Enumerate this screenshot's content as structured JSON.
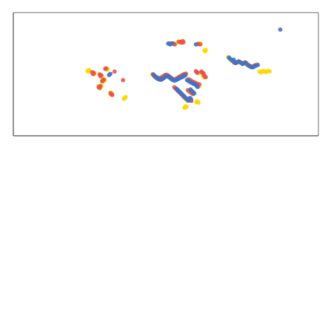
{
  "chart_data": {
    "type": "scatter",
    "xlim": [
      -180,
      180
    ],
    "ylim": [
      -60,
      85
    ],
    "grid": false,
    "tick_labels": false,
    "series": [
      {
        "color": "#FFD700",
        "values": [
          [
            -16.0,
            12.5
          ],
          [
            -14.8,
            11.2
          ],
          [
            -13.5,
            9.8
          ],
          [
            -12.2,
            8.8
          ],
          [
            -10.8,
            7.8
          ],
          [
            -9.2,
            6.5
          ],
          [
            -7.8,
            7.0
          ],
          [
            -6.2,
            7.5
          ],
          [
            -4.8,
            8.2
          ],
          [
            -3.5,
            9.0
          ],
          [
            -2.2,
            10.0
          ],
          [
            -0.5,
            11.0
          ],
          [
            0.8,
            11.5
          ],
          [
            2.2,
            11.0
          ],
          [
            3.5,
            10.2
          ],
          [
            4.8,
            9.0
          ],
          [
            6.2,
            8.2
          ],
          [
            7.5,
            7.2
          ],
          [
            8.8,
            6.2
          ],
          [
            10.2,
            5.5
          ],
          [
            11.5,
            6.2
          ],
          [
            12.8,
            7.0
          ],
          [
            14.0,
            7.8
          ],
          [
            15.2,
            8.5
          ],
          [
            16.5,
            9.0
          ],
          [
            18.0,
            9.8
          ],
          [
            19.5,
            10.8
          ],
          [
            21.0,
            11.5
          ],
          [
            22.5,
            12.0
          ],
          [
            24.0,
            12.8
          ],
          [
            26.0,
            6.0
          ],
          [
            28.0,
            4.8
          ],
          [
            30.0,
            3.5
          ],
          [
            32.0,
            2.5
          ],
          [
            34.0,
            1.5
          ],
          [
            36.0,
            0.5
          ],
          [
            38.0,
            -0.5
          ],
          [
            39.5,
            -1.8
          ],
          [
            11.0,
            -3.5
          ],
          [
            13.0,
            -5.5
          ],
          [
            14.8,
            -7.2
          ],
          [
            16.5,
            -8.8
          ],
          [
            18.0,
            -10.2
          ],
          [
            19.5,
            -11.8
          ],
          [
            21.0,
            -13.2
          ],
          [
            22.5,
            -14.8
          ],
          [
            24.0,
            -16.2
          ],
          [
            26.0,
            -17.8
          ],
          [
            28.0,
            -6.0
          ],
          [
            29.5,
            -7.8
          ],
          [
            31.0,
            -9.2
          ],
          [
            32.5,
            -10.8
          ],
          [
            27.5,
            -16.0
          ],
          [
            29.0,
            -17.8
          ],
          [
            25.5,
            -19.0
          ],
          [
            37.0,
            -19.5
          ],
          [
            36.0,
            -20.5
          ],
          [
            38.5,
            -21.0
          ],
          [
            23.0,
            -25.5
          ],
          [
            24.5,
            -26.0
          ],
          [
            22.0,
            -27.0
          ],
          [
            79.0,
            27.5
          ],
          [
            81.0,
            26.8
          ],
          [
            83.0,
            25.8
          ],
          [
            85.5,
            27.2
          ],
          [
            87.5,
            26.2
          ],
          [
            89.5,
            24.8
          ],
          [
            91.5,
            25.5
          ],
          [
            93.0,
            26.5
          ],
          [
            95.5,
            24.0
          ],
          [
            97.5,
            22.8
          ],
          [
            99.5,
            21.5
          ],
          [
            101.5,
            20.8
          ],
          [
            103.5,
            21.8
          ],
          [
            105.5,
            22.8
          ],
          [
            107.5,
            24.0
          ],
          [
            77.0,
            29.0
          ],
          [
            75.0,
            30.8
          ],
          [
            73.5,
            32.5
          ],
          [
            6.0,
            49.0
          ],
          [
            9.0,
            48.2
          ],
          [
            11.5,
            48.5
          ],
          [
            14.0,
            50.5
          ],
          [
            16.5,
            50.0
          ],
          [
            19.0,
            51.0
          ],
          [
            21.0,
            50.5
          ],
          [
            37.5,
            48.5
          ],
          [
            39.0,
            47.8
          ],
          [
            41.0,
            48.5
          ],
          [
            45.5,
            40.5
          ],
          [
            47.0,
            41.0
          ],
          [
            46.5,
            39.5
          ],
          [
            -73.0,
            4.5
          ],
          [
            -74.5,
            3.5
          ],
          [
            -72.0,
            5.5
          ],
          [
            -78.5,
            -2.2
          ],
          [
            -77.2,
            -3.5
          ],
          [
            -76.0,
            -1.8
          ],
          [
            -79.5,
            -1.2
          ],
          [
            -63.5,
            -10.5
          ],
          [
            -64.8,
            -11.5
          ],
          [
            -65.5,
            -9.2
          ],
          [
            -48.5,
            -15.5
          ],
          [
            -49.5,
            -16.5
          ],
          [
            -47.5,
            -14.5
          ],
          [
            -68.5,
            18.5
          ],
          [
            -69.5,
            17.8
          ],
          [
            -75.5,
            10.5
          ],
          [
            -76.5,
            9.5
          ],
          [
            -77.5,
            11.5
          ],
          [
            -84.0,
            13.5
          ],
          [
            -85.0,
            12.5
          ],
          [
            -86.0,
            14.5
          ],
          [
            -92.5,
            16.5
          ],
          [
            -91.5,
            15.5
          ],
          [
            -90.5,
            17.5
          ],
          [
            42.5,
            13.5
          ],
          [
            43.5,
            12.5
          ],
          [
            41.5,
            14.5
          ],
          [
            45.0,
            9.5
          ],
          [
            46.0,
            8.5
          ],
          [
            44.0,
            10.5
          ],
          [
            110.5,
            15.5
          ],
          [
            112.5,
            14.5
          ],
          [
            114.5,
            16.5
          ],
          [
            116.5,
            15.8
          ],
          [
            118.5,
            15.0
          ],
          [
            120.5,
            16.5
          ],
          [
            122.5,
            15.8
          ]
        ]
      },
      {
        "color": "#E8534A",
        "values": [
          [
            -15.2,
            12.2
          ],
          [
            -13.8,
            10.8
          ],
          [
            -12.5,
            9.5
          ],
          [
            -11.2,
            8.2
          ],
          [
            -9.8,
            7.5
          ],
          [
            -8.5,
            7.2
          ],
          [
            -7.2,
            7.8
          ],
          [
            -5.5,
            8.5
          ],
          [
            -4.0,
            9.2
          ],
          [
            -2.5,
            10.5
          ],
          [
            -1.2,
            11.2
          ],
          [
            0.2,
            11.8
          ],
          [
            1.5,
            11.5
          ],
          [
            2.8,
            10.8
          ],
          [
            4.0,
            9.5
          ],
          [
            5.5,
            8.8
          ],
          [
            7.0,
            7.5
          ],
          [
            8.5,
            6.5
          ],
          [
            9.8,
            5.8
          ],
          [
            11.2,
            6.5
          ],
          [
            12.5,
            7.2
          ],
          [
            13.8,
            8.0
          ],
          [
            15.0,
            8.8
          ],
          [
            16.2,
            9.5
          ],
          [
            17.5,
            10.2
          ],
          [
            19.0,
            11.0
          ],
          [
            20.5,
            12.0
          ],
          [
            22.0,
            12.5
          ],
          [
            23.5,
            13.2
          ],
          [
            27.0,
            6.5
          ],
          [
            29.0,
            5.2
          ],
          [
            31.0,
            4.0
          ],
          [
            33.0,
            3.2
          ],
          [
            35.0,
            2.2
          ],
          [
            37.0,
            1.2
          ],
          [
            39.5,
            0.5
          ],
          [
            10.0,
            -3.0
          ],
          [
            12.0,
            -5.0
          ],
          [
            14.0,
            -7.0
          ],
          [
            16.0,
            -9.0
          ],
          [
            18.0,
            -11.0
          ],
          [
            20.0,
            -13.0
          ],
          [
            22.0,
            -15.0
          ],
          [
            24.0,
            -17.0
          ],
          [
            26.0,
            -6.5
          ],
          [
            28.0,
            -8.0
          ],
          [
            30.0,
            -9.5
          ],
          [
            32.0,
            -11.0
          ],
          [
            28.0,
            -17.5
          ],
          [
            30.0,
            -19.0
          ],
          [
            36.5,
            15.0
          ],
          [
            37.5,
            14.0
          ],
          [
            35.5,
            16.0
          ],
          [
            43.0,
            14.5
          ],
          [
            44.5,
            13.5
          ],
          [
            42.0,
            15.5
          ],
          [
            46.0,
            10.0
          ],
          [
            47.0,
            9.0
          ],
          [
            45.0,
            11.0
          ],
          [
            4.5,
            48.8
          ],
          [
            7.0,
            48.5
          ],
          [
            10.5,
            47.5
          ],
          [
            15.5,
            50.8
          ],
          [
            18.0,
            50.5
          ],
          [
            20.0,
            51.5
          ],
          [
            38.5,
            48.2
          ],
          [
            40.5,
            47.5
          ],
          [
            81.5,
            26.5
          ],
          [
            83.5,
            26.0
          ],
          [
            85.5,
            27.5
          ],
          [
            87.5,
            27.0
          ],
          [
            91.0,
            25.2
          ],
          [
            93.5,
            26.2
          ],
          [
            95.5,
            25.0
          ],
          [
            97.5,
            23.2
          ],
          [
            99.5,
            22.2
          ],
          [
            101.5,
            21.2
          ],
          [
            103.5,
            22.0
          ],
          [
            105.5,
            23.0
          ],
          [
            -74.2,
            5.2
          ],
          [
            -73.2,
            6.2
          ],
          [
            -75.2,
            4.2
          ],
          [
            -79.2,
            -2.8
          ],
          [
            -78.2,
            -3.8
          ],
          [
            -77.2,
            -1.5
          ],
          [
            -64.2,
            -11.0
          ],
          [
            -63.2,
            -12.0
          ],
          [
            -65.2,
            -10.0
          ],
          [
            -70.5,
            19.2
          ],
          [
            -71.5,
            18.8
          ],
          [
            -76.2,
            11.2
          ],
          [
            -77.2,
            10.2
          ],
          [
            -78.2,
            12.2
          ],
          [
            -85.0,
            13.8
          ],
          [
            -86.0,
            12.8
          ],
          [
            -87.0,
            14.8
          ],
          [
            -60.5,
            15.5
          ],
          [
            -50.5,
            5.5
          ],
          [
            18.5,
            49.5
          ],
          [
            20.5,
            50.0
          ]
        ]
      },
      {
        "color": "#4472C4",
        "values": [
          [
            -14.5,
            11.8
          ],
          [
            -13.2,
            10.5
          ],
          [
            -11.8,
            9.2
          ],
          [
            -10.1,
            8.5
          ],
          [
            -9.5,
            7.2
          ],
          [
            -8.2,
            6.8
          ],
          [
            -7.0,
            6.2
          ],
          [
            -5.8,
            5.9
          ],
          [
            -4.5,
            6.5
          ],
          [
            -3.2,
            7.5
          ],
          [
            -2.1,
            8.2
          ],
          [
            -0.8,
            9.5
          ],
          [
            0.5,
            9.8
          ],
          [
            1.8,
            10.2
          ],
          [
            3.0,
            9.8
          ],
          [
            4.2,
            8.5
          ],
          [
            5.5,
            7.8
          ],
          [
            6.8,
            6.5
          ],
          [
            8.0,
            6.0
          ],
          [
            9.2,
            5.2
          ],
          [
            10.5,
            4.8
          ],
          [
            11.8,
            5.5
          ],
          [
            13.0,
            6.2
          ],
          [
            14.2,
            6.8
          ],
          [
            15.5,
            7.5
          ],
          [
            16.8,
            8.0
          ],
          [
            18.2,
            8.8
          ],
          [
            20.0,
            9.5
          ],
          [
            21.5,
            10.5
          ],
          [
            23.0,
            11.2
          ],
          [
            25.0,
            5.5
          ],
          [
            27.0,
            4.2
          ],
          [
            29.0,
            3.0
          ],
          [
            31.0,
            2.0
          ],
          [
            33.0,
            1.0
          ],
          [
            35.0,
            0.2
          ],
          [
            36.5,
            -1.2
          ],
          [
            37.5,
            -2.5
          ],
          [
            12.5,
            -4.5
          ],
          [
            14.0,
            -6.0
          ],
          [
            15.5,
            -7.5
          ],
          [
            17.0,
            -9.0
          ],
          [
            18.5,
            -10.5
          ],
          [
            20.0,
            -12.0
          ],
          [
            21.5,
            -13.5
          ],
          [
            23.0,
            -15.0
          ],
          [
            25.0,
            -16.5
          ],
          [
            27.0,
            -18.0
          ],
          [
            29.0,
            -5.5
          ],
          [
            30.5,
            -7.0
          ],
          [
            32.0,
            -8.5
          ],
          [
            33.5,
            -10.0
          ],
          [
            28.5,
            -15.5
          ],
          [
            29.8,
            -17.2
          ],
          [
            26.5,
            -18.5
          ],
          [
            80.5,
            26.2
          ],
          [
            82.0,
            25.5
          ],
          [
            84.5,
            26.8
          ],
          [
            86.0,
            27.5
          ],
          [
            88.5,
            25.8
          ],
          [
            90.5,
            24.5
          ],
          [
            92.5,
            25.2
          ],
          [
            94.0,
            26.0
          ],
          [
            96.5,
            23.5
          ],
          [
            98.5,
            22.0
          ],
          [
            100.5,
            21.0
          ],
          [
            102.5,
            20.5
          ],
          [
            104.5,
            21.5
          ],
          [
            106.5,
            22.5
          ],
          [
            108.5,
            23.5
          ],
          [
            78.0,
            28.5
          ],
          [
            80.0,
            29.5
          ],
          [
            76.0,
            30.5
          ],
          [
            74.5,
            32.0
          ],
          [
            2.8,
            48.5
          ],
          [
            5.0,
            47.5
          ],
          [
            8.2,
            48.8
          ],
          [
            35.5,
            47.5
          ],
          [
            135.0,
            65.0
          ],
          [
            -65.5,
            13.0
          ],
          [
            -67.0,
            11.5
          ]
        ]
      }
    ]
  }
}
